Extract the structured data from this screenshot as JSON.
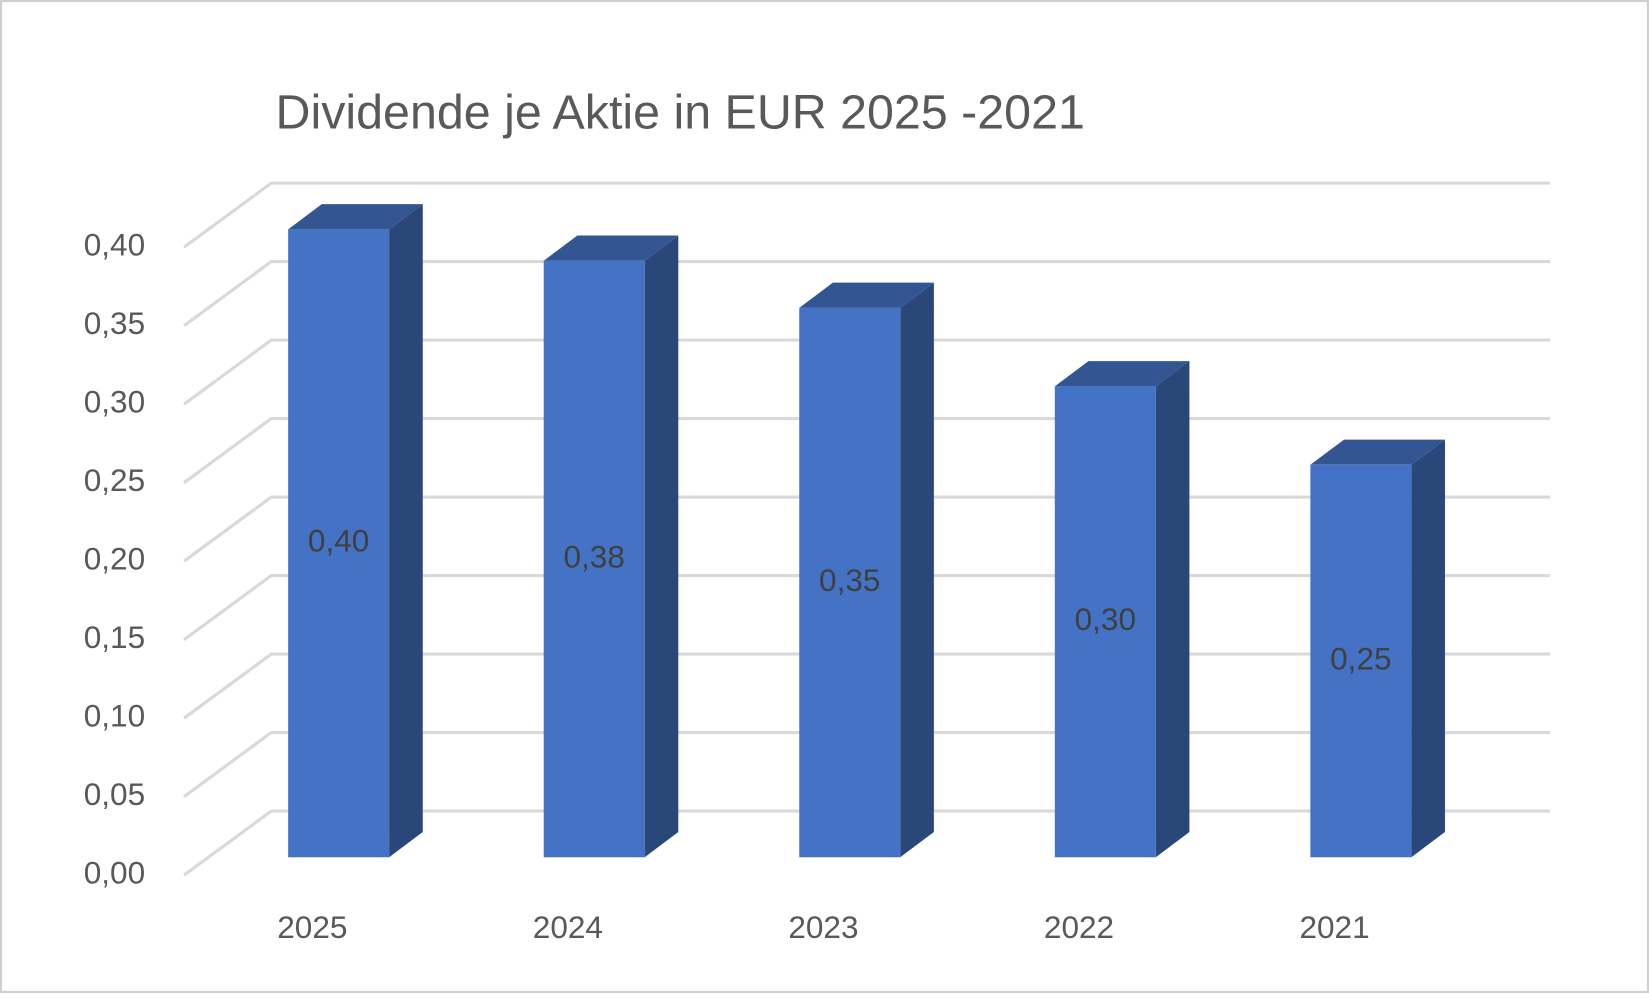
{
  "chart_data": {
    "type": "bar3d",
    "title": "Dividende je Aktie in EUR 2025 -2021",
    "categories": [
      "2025",
      "2024",
      "2023",
      "2022",
      "2021"
    ],
    "values": [
      0.4,
      0.38,
      0.35,
      0.3,
      0.25
    ],
    "value_labels": [
      "0,40",
      "0,38",
      "0,35",
      "0,30",
      "0,25"
    ],
    "color": "#4472c4",
    "ylim": [
      0,
      0.4
    ],
    "yticks": [
      {
        "value": 0,
        "label": "0,00"
      },
      {
        "value": 0.05,
        "label": "0,05"
      },
      {
        "value": 0.1,
        "label": "0,10"
      },
      {
        "value": 0.15,
        "label": "0,15"
      },
      {
        "value": 0.2,
        "label": "0,20"
      },
      {
        "value": 0.25,
        "label": "0,25"
      },
      {
        "value": 0.3,
        "label": "0,30"
      },
      {
        "value": 0.35,
        "label": "0,35"
      },
      {
        "value": 0.4,
        "label": "0,40"
      }
    ],
    "grid": true
  }
}
